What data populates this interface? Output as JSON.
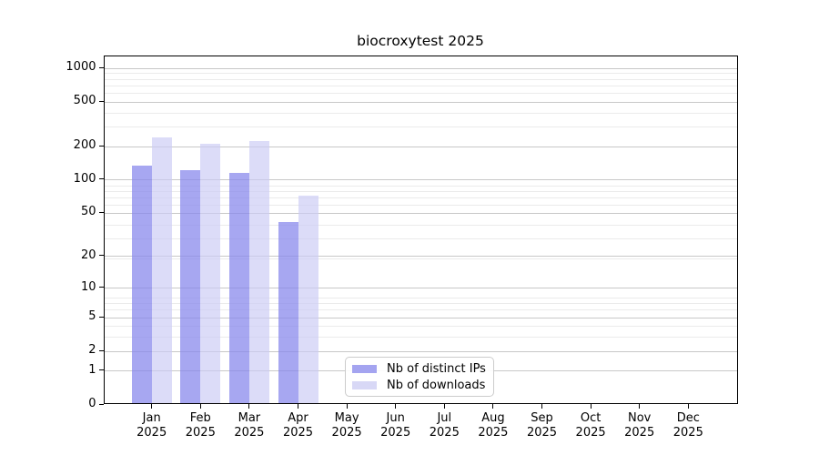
{
  "chart_data": {
    "type": "bar",
    "title": "biocroxytest 2025",
    "categories": [
      "Jan",
      "Feb",
      "Mar",
      "Apr",
      "May",
      "Jun",
      "Jul",
      "Aug",
      "Sep",
      "Oct",
      "Nov",
      "Dec"
    ],
    "year": "2025",
    "series": [
      {
        "name": "Nb of distinct IPs",
        "color": "#a4a4f0",
        "values": [
          130,
          118,
          112,
          40,
          0,
          0,
          0,
          0,
          0,
          0,
          0,
          0
        ]
      },
      {
        "name": "Nb of downloads",
        "color": "#d8d8f6",
        "values": [
          232,
          204,
          216,
          70,
          0,
          0,
          0,
          0,
          0,
          0,
          0,
          0
        ]
      }
    ],
    "y_ticks": [
      0,
      1,
      2,
      5,
      10,
      20,
      50,
      100,
      200,
      500,
      1000
    ],
    "ylim": [
      0,
      1280
    ],
    "y_scale": "log10(1+x)",
    "grid": true,
    "legend_position": "lower center-left inside plot"
  },
  "legend": {
    "items": [
      {
        "label": "Nb of distinct IPs",
        "color": "#a4a4f0"
      },
      {
        "label": "Nb of downloads",
        "color": "#d8d8f6"
      }
    ]
  },
  "colors": {
    "major_grid": "#c8c8c8",
    "minor_grid": "#ebebeb",
    "axis": "#000000",
    "background": "#ffffff"
  }
}
